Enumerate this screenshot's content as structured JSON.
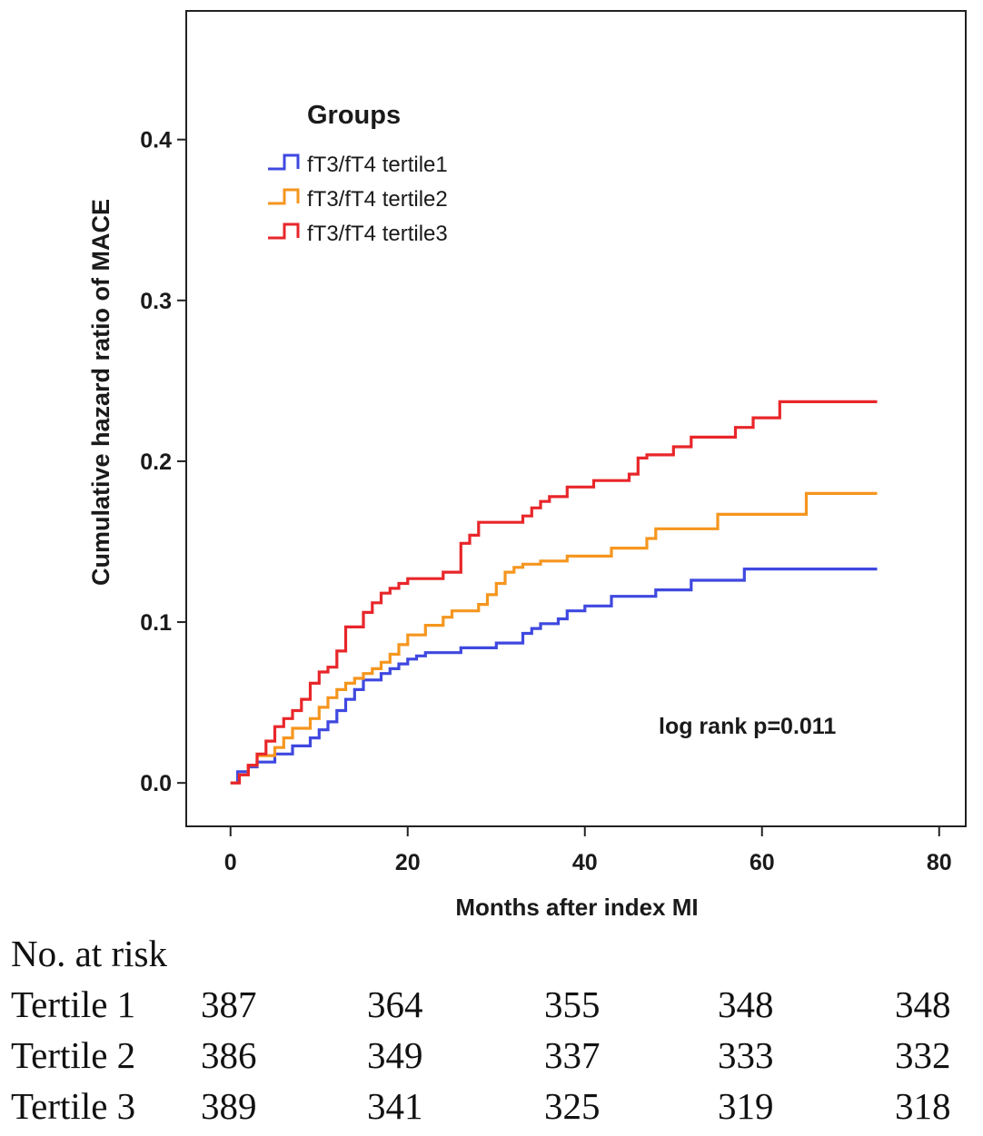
{
  "chart_data": {
    "type": "line",
    "title": "",
    "xlabel": "Months after index MI",
    "ylabel": "Cumulative hazard ratio of MACE",
    "xlim": [
      -5,
      83
    ],
    "ylim": [
      -0.027,
      0.48
    ],
    "xticks": [
      0,
      20,
      40,
      60,
      80
    ],
    "xtick_labels": [
      "0",
      "20",
      "40",
      "60",
      "80"
    ],
    "yticks": [
      0.0,
      0.1,
      0.2,
      0.3,
      0.4
    ],
    "ytick_labels": [
      "0.0",
      "0.1",
      "0.2",
      "0.3",
      "0.4"
    ],
    "grid": false,
    "legend_title": "Groups",
    "legend_position": "top-left",
    "annotation": "log rank p=0.011",
    "series": [
      {
        "name": "fT3/fT4 tertile1",
        "color": "#3f48e0",
        "x": [
          0,
          0.8,
          2,
          3,
          5,
          7,
          9,
          10,
          11,
          12,
          13,
          14,
          15,
          17,
          18,
          19,
          20,
          21,
          22,
          26,
          30,
          33,
          34,
          35,
          37,
          38,
          40,
          43,
          48,
          52,
          58,
          73
        ],
        "y": [
          0,
          0.007,
          0.01,
          0.013,
          0.018,
          0.023,
          0.028,
          0.033,
          0.038,
          0.045,
          0.052,
          0.058,
          0.064,
          0.068,
          0.071,
          0.074,
          0.077,
          0.079,
          0.081,
          0.084,
          0.087,
          0.093,
          0.096,
          0.099,
          0.102,
          0.107,
          0.11,
          0.116,
          0.12,
          0.126,
          0.133,
          0.133
        ]
      },
      {
        "name": "fT3/fT4 tertile2",
        "color": "#f5961e",
        "x": [
          0,
          1,
          2,
          3,
          5,
          6,
          7,
          9,
          10,
          11,
          12,
          13,
          14,
          15,
          16,
          17,
          18,
          19,
          20,
          22,
          24,
          25,
          27,
          28,
          29,
          30,
          31,
          32,
          33,
          35,
          38,
          43,
          47,
          48,
          55,
          65,
          73
        ],
        "y": [
          0,
          0.005,
          0.011,
          0.017,
          0.022,
          0.028,
          0.034,
          0.04,
          0.047,
          0.053,
          0.058,
          0.062,
          0.065,
          0.068,
          0.071,
          0.075,
          0.08,
          0.086,
          0.092,
          0.098,
          0.103,
          0.107,
          0.107,
          0.111,
          0.117,
          0.124,
          0.131,
          0.134,
          0.136,
          0.138,
          0.141,
          0.146,
          0.152,
          0.158,
          0.167,
          0.18,
          0.18
        ]
      },
      {
        "name": "fT3/fT4 tertile3",
        "color": "#e8262a",
        "x": [
          0,
          1,
          2,
          3,
          4,
          5,
          6,
          7,
          8,
          9,
          10,
          11,
          12,
          13,
          15,
          16,
          17,
          18,
          19,
          20,
          24,
          26,
          27,
          28,
          30,
          33,
          34,
          35,
          36,
          38,
          41,
          45,
          46,
          47,
          50,
          52,
          54,
          57,
          59,
          62,
          73
        ],
        "y": [
          0,
          0.005,
          0.011,
          0.018,
          0.026,
          0.035,
          0.04,
          0.045,
          0.052,
          0.062,
          0.069,
          0.072,
          0.082,
          0.097,
          0.106,
          0.112,
          0.118,
          0.121,
          0.124,
          0.127,
          0.131,
          0.149,
          0.154,
          0.162,
          0.162,
          0.166,
          0.171,
          0.175,
          0.178,
          0.184,
          0.188,
          0.192,
          0.202,
          0.204,
          0.209,
          0.215,
          0.215,
          0.221,
          0.227,
          0.237,
          0.237
        ]
      }
    ]
  },
  "risk_table": {
    "title": "No. at risk",
    "rows": [
      {
        "label": "Tertile 1",
        "values": [
          "387",
          "364",
          "355",
          "348",
          "348"
        ]
      },
      {
        "label": "Tertile 2",
        "values": [
          "386",
          "349",
          "337",
          "333",
          "332"
        ]
      },
      {
        "label": "Tertile 3",
        "values": [
          "389",
          "341",
          "325",
          "319",
          "318"
        ]
      }
    ]
  }
}
